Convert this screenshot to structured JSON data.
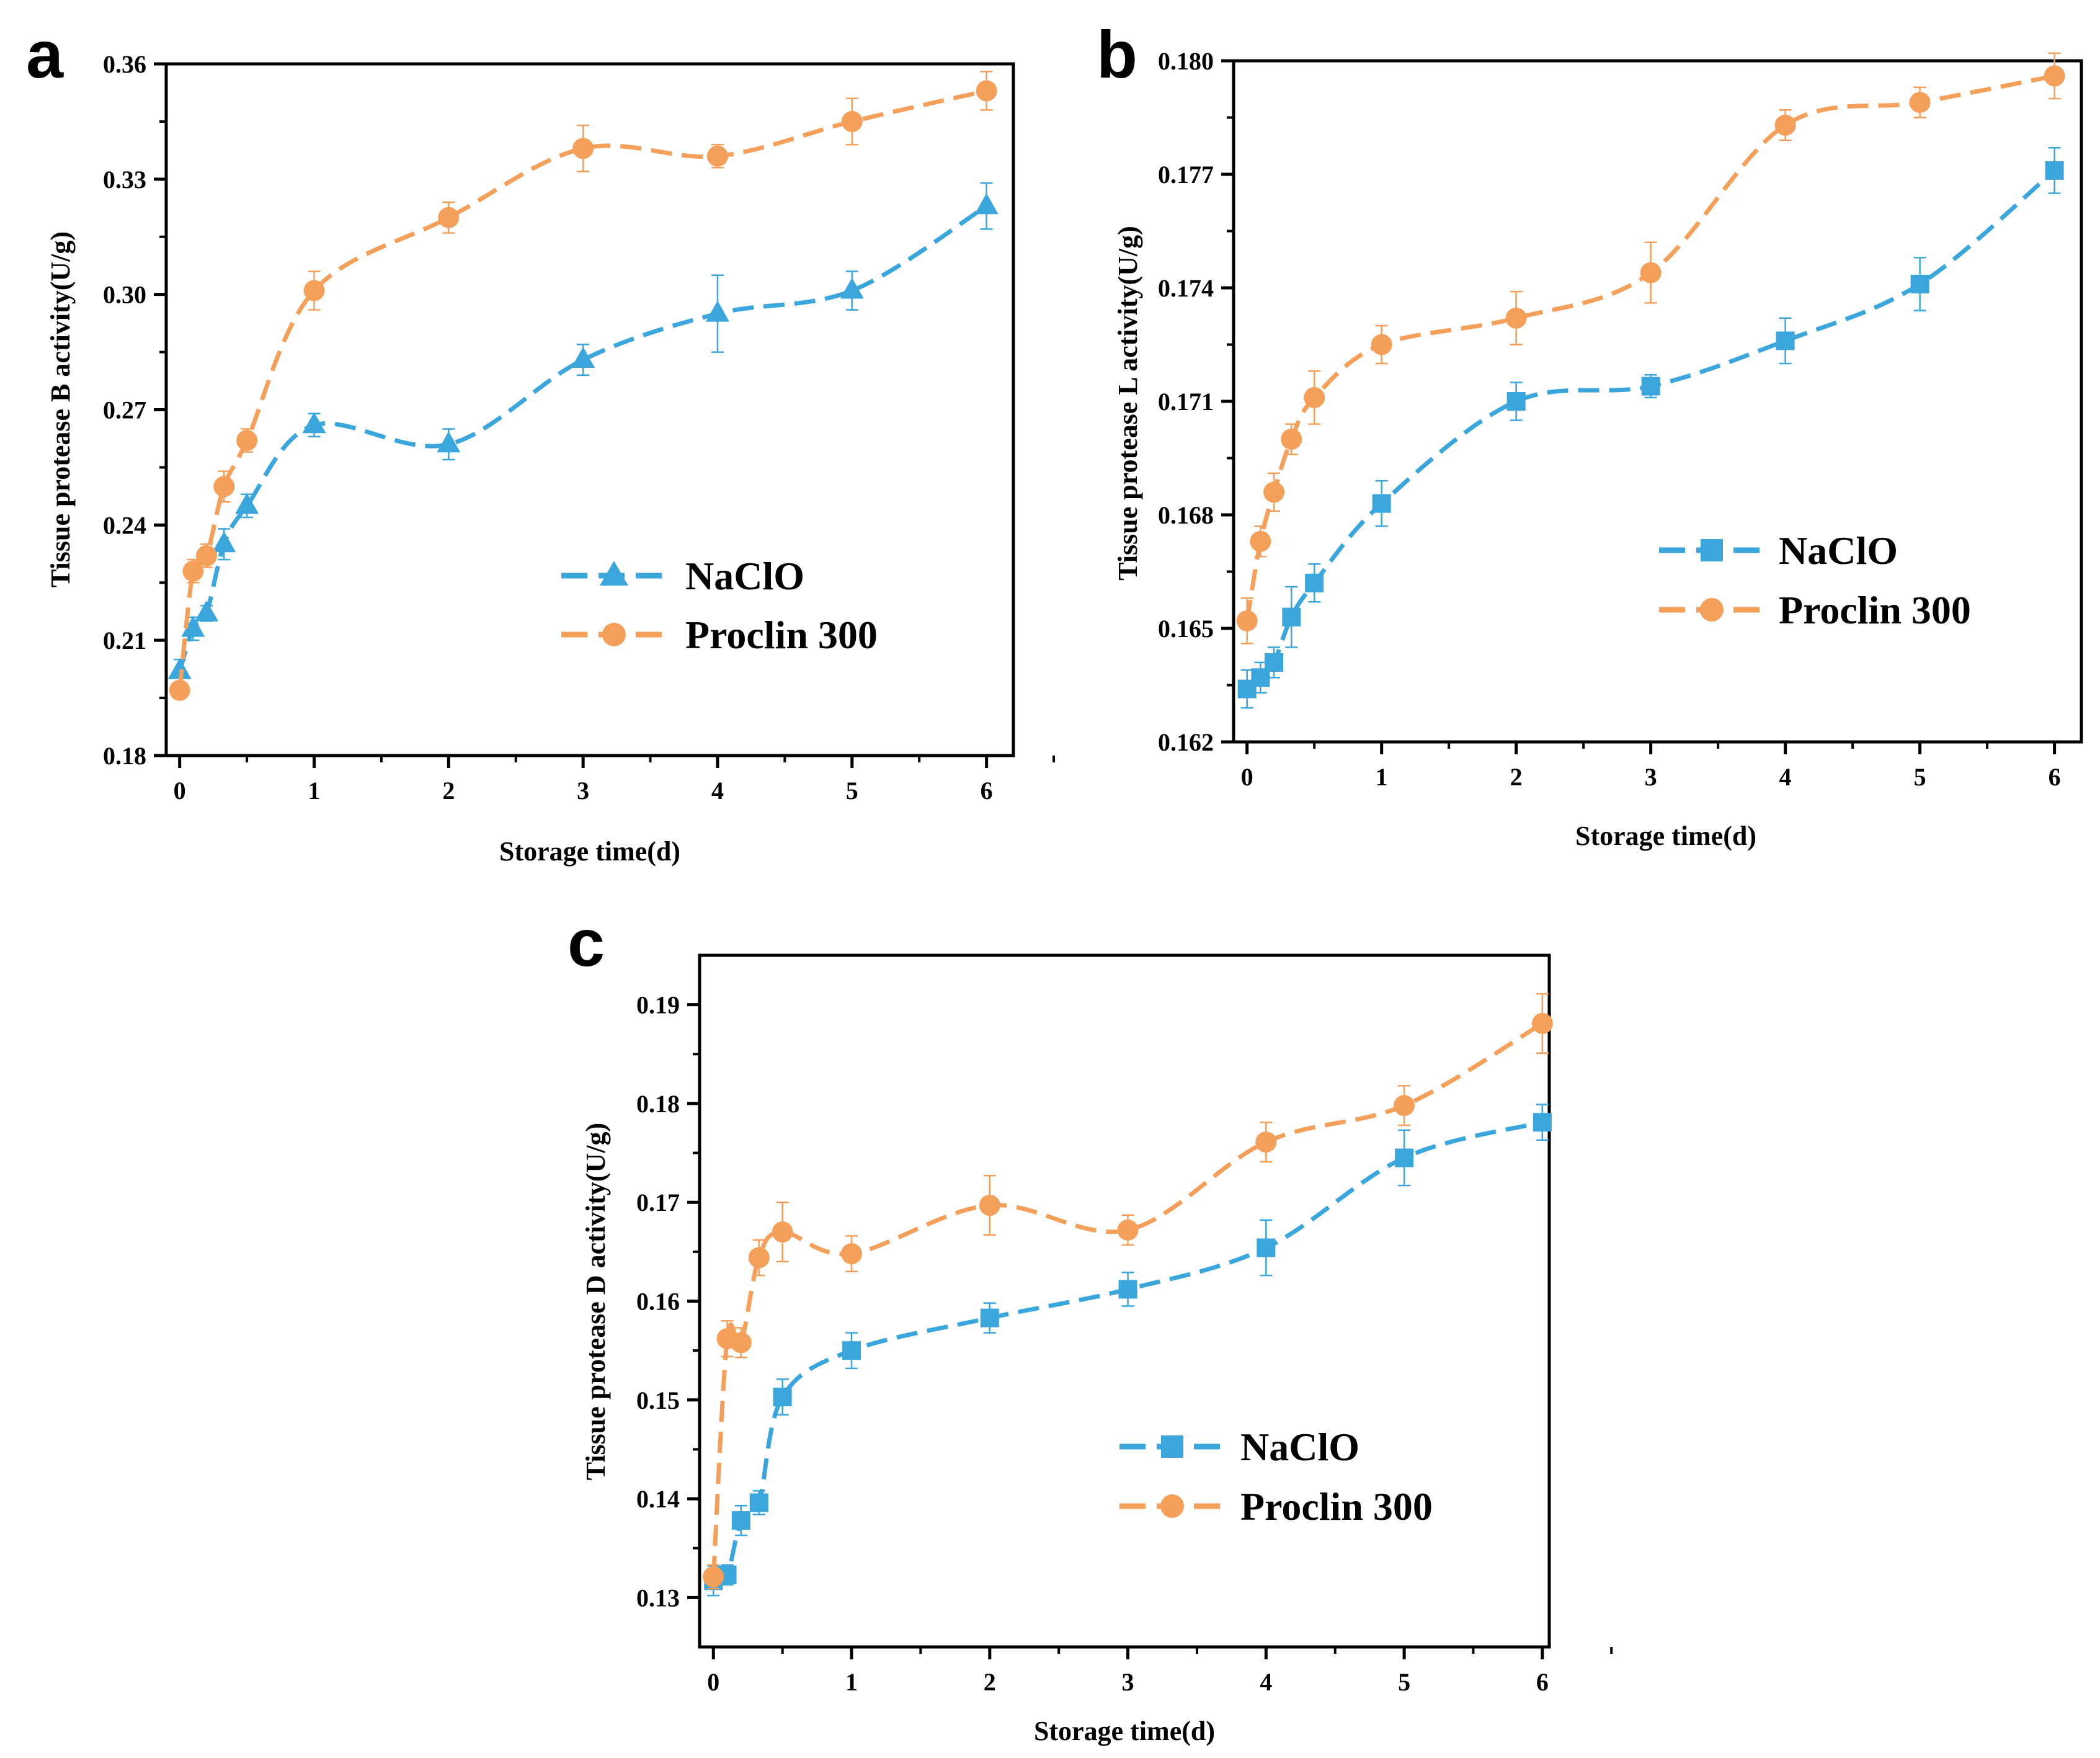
{
  "colors": {
    "naclo": "#3aa6db",
    "proclin": "#f5a05a",
    "axis": "#000000"
  },
  "chart_data": [
    {
      "panel": "a",
      "type": "line",
      "xlabel": "Storage time(d)",
      "ylabel": "Tissue protease B activity(U/g)",
      "xlim": [
        -0.1,
        6.2
      ],
      "ylim": [
        0.18,
        0.36
      ],
      "xticks": [
        0,
        1,
        2,
        3,
        4,
        5,
        6
      ],
      "yticks": [
        0.18,
        0.21,
        0.24,
        0.27,
        0.3,
        0.33,
        0.36
      ],
      "ytick_labels": [
        "0.18",
        "0.21",
        "0.24",
        "0.27",
        "0.30",
        "0.33",
        "0.36"
      ],
      "legend_position": "center-right",
      "series": [
        {
          "name": "NaClO",
          "marker": "triangle",
          "x": [
            0,
            0.1,
            0.2,
            0.33,
            0.5,
            1,
            2,
            3,
            4,
            5,
            6
          ],
          "y": [
            0.202,
            0.213,
            0.217,
            0.235,
            0.245,
            0.266,
            0.261,
            0.283,
            0.295,
            0.301,
            0.323
          ],
          "err": [
            0.003,
            0.003,
            0.002,
            0.004,
            0.003,
            0.003,
            0.004,
            0.004,
            0.01,
            0.005,
            0.006
          ]
        },
        {
          "name": "Proclin 300",
          "marker": "circle",
          "x": [
            0,
            0.1,
            0.2,
            0.33,
            0.5,
            1,
            2,
            3,
            4,
            5,
            6
          ],
          "y": [
            0.197,
            0.228,
            0.232,
            0.25,
            0.262,
            0.301,
            0.32,
            0.338,
            0.336,
            0.345,
            0.353
          ],
          "err": [
            0.002,
            0.003,
            0.003,
            0.004,
            0.003,
            0.005,
            0.004,
            0.006,
            0.003,
            0.006,
            0.005
          ]
        }
      ]
    },
    {
      "panel": "b",
      "type": "line",
      "xlabel": "Storage time(d)",
      "ylabel": "Tissue protease L activity(U/g)",
      "xlim": [
        -0.1,
        6.2
      ],
      "ylim": [
        0.162,
        0.18
      ],
      "xticks": [
        0,
        1,
        2,
        3,
        4,
        5,
        6
      ],
      "yticks": [
        0.162,
        0.165,
        0.168,
        0.171,
        0.174,
        0.177,
        0.18
      ],
      "ytick_labels": [
        "0.162",
        "0.165",
        "0.168",
        "0.171",
        "0.174",
        "0.177",
        "0.180"
      ],
      "legend_position": "center-right",
      "series": [
        {
          "name": "NaClO",
          "marker": "square",
          "x": [
            0,
            0.1,
            0.2,
            0.33,
            0.5,
            1,
            2,
            3,
            4,
            5,
            6
          ],
          "y": [
            0.1634,
            0.1637,
            0.1641,
            0.1653,
            0.1662,
            0.1683,
            0.171,
            0.1714,
            0.1726,
            0.1741,
            0.1771
          ],
          "err": [
            0.0005,
            0.0004,
            0.0004,
            0.0008,
            0.0005,
            0.0006,
            0.0005,
            0.0003,
            0.0006,
            0.0007,
            0.0006
          ]
        },
        {
          "name": "Proclin 300",
          "marker": "circle",
          "x": [
            0,
            0.1,
            0.2,
            0.33,
            0.5,
            1,
            2,
            3,
            4,
            5,
            6
          ],
          "y": [
            0.1652,
            0.1673,
            0.1686,
            0.17,
            0.1711,
            0.1725,
            0.1732,
            0.1744,
            0.1783,
            0.1789,
            0.1796
          ],
          "err": [
            0.0006,
            0.0004,
            0.0005,
            0.0004,
            0.0007,
            0.0005,
            0.0007,
            0.0008,
            0.0004,
            0.0004,
            0.0006
          ]
        }
      ]
    },
    {
      "panel": "c",
      "type": "line",
      "xlabel": "Storage time(d)",
      "ylabel": "Tissue protease D activity(U/g)",
      "xlim": [
        -0.1,
        6.05
      ],
      "ylim": [
        0.125,
        0.195
      ],
      "xticks": [
        0,
        1,
        2,
        3,
        4,
        5,
        6
      ],
      "yticks": [
        0.13,
        0.14,
        0.15,
        0.16,
        0.17,
        0.18,
        0.19
      ],
      "ytick_labels": [
        "0.13",
        "0.14",
        "0.15",
        "0.16",
        "0.17",
        "0.18",
        "0.19"
      ],
      "legend_position": "center-right",
      "series": [
        {
          "name": "NaClO",
          "marker": "square",
          "x": [
            0,
            0.1,
            0.2,
            0.33,
            0.5,
            1,
            2,
            3,
            4,
            5,
            6
          ],
          "y": [
            0.1317,
            0.1323,
            0.1378,
            0.1396,
            0.1503,
            0.155,
            0.1583,
            0.1612,
            0.1654,
            0.1745,
            0.1781
          ],
          "err": [
            0.0015,
            0.001,
            0.0015,
            0.0012,
            0.0018,
            0.0018,
            0.0015,
            0.0017,
            0.0028,
            0.0028,
            0.0018
          ]
        },
        {
          "name": "Proclin 300",
          "marker": "circle",
          "x": [
            0,
            0.1,
            0.2,
            0.33,
            0.5,
            1,
            2,
            3,
            4,
            5,
            6
          ],
          "y": [
            0.1321,
            0.1562,
            0.1558,
            0.1644,
            0.167,
            0.1648,
            0.1697,
            0.1672,
            0.1761,
            0.1798,
            0.1881
          ],
          "err": [
            0.0012,
            0.0018,
            0.0015,
            0.0018,
            0.003,
            0.0018,
            0.003,
            0.0015,
            0.002,
            0.002,
            0.003
          ]
        }
      ]
    }
  ]
}
